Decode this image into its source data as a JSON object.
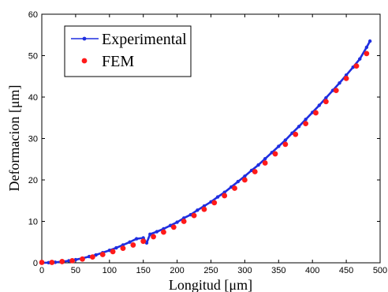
{
  "chart_data": {
    "type": "scatter",
    "title": "",
    "xlabel": "Longitud [μm]",
    "ylabel": "Deformacion [μm]",
    "xlim": [
      0,
      500
    ],
    "ylim": [
      0,
      60
    ],
    "xticks": [
      "0",
      "50",
      "100",
      "150",
      "200",
      "250",
      "300",
      "350",
      "400",
      "450",
      "500"
    ],
    "yticks": [
      "0",
      "10",
      "20",
      "30",
      "40",
      "50",
      "60"
    ],
    "grid": false,
    "legend_position": "top-left",
    "series": [
      {
        "name": "Experimental",
        "style": "line-with-dots",
        "color": "#1f2ee0",
        "x": [
          0,
          10,
          20,
          30,
          40,
          50,
          60,
          70,
          80,
          90,
          100,
          110,
          120,
          130,
          140,
          150,
          155,
          160,
          170,
          180,
          190,
          200,
          210,
          220,
          230,
          240,
          250,
          260,
          270,
          280,
          290,
          300,
          310,
          320,
          330,
          340,
          350,
          360,
          370,
          380,
          390,
          400,
          410,
          420,
          430,
          440,
          450,
          460,
          470,
          480,
          485
        ],
        "y": [
          0,
          0.03,
          0.12,
          0.27,
          0.48,
          0.75,
          1.1,
          1.5,
          1.9,
          2.45,
          3.0,
          3.6,
          4.3,
          5.0,
          5.8,
          6.0,
          4.8,
          6.9,
          7.5,
          8.2,
          9.0,
          9.8,
          10.8,
          11.6,
          12.7,
          13.7,
          14.7,
          15.9,
          17.0,
          18.3,
          19.6,
          20.9,
          22.3,
          23.6,
          25.1,
          26.6,
          28.1,
          29.6,
          31.3,
          32.9,
          34.6,
          36.3,
          38.0,
          39.8,
          41.6,
          43.4,
          45.3,
          47.2,
          49.2,
          52.0,
          53.5
        ]
      },
      {
        "name": "FEM",
        "style": "markers",
        "color": "#ff1a1a",
        "x": [
          0,
          15,
          30,
          45,
          60,
          75,
          90,
          105,
          120,
          135,
          150,
          165,
          180,
          195,
          210,
          225,
          240,
          255,
          270,
          285,
          300,
          315,
          330,
          345,
          360,
          375,
          390,
          405,
          420,
          435,
          450,
          465,
          480
        ],
        "y": [
          0.1,
          0.1,
          0.3,
          0.5,
          0.9,
          1.4,
          2.0,
          2.7,
          3.5,
          4.3,
          5.2,
          6.3,
          7.4,
          8.6,
          10.0,
          11.4,
          12.9,
          14.5,
          16.2,
          18.0,
          20.0,
          22.0,
          24.1,
          26.3,
          28.6,
          31.0,
          33.6,
          36.2,
          38.9,
          41.6,
          44.5,
          47.5,
          50.5
        ]
      }
    ]
  }
}
